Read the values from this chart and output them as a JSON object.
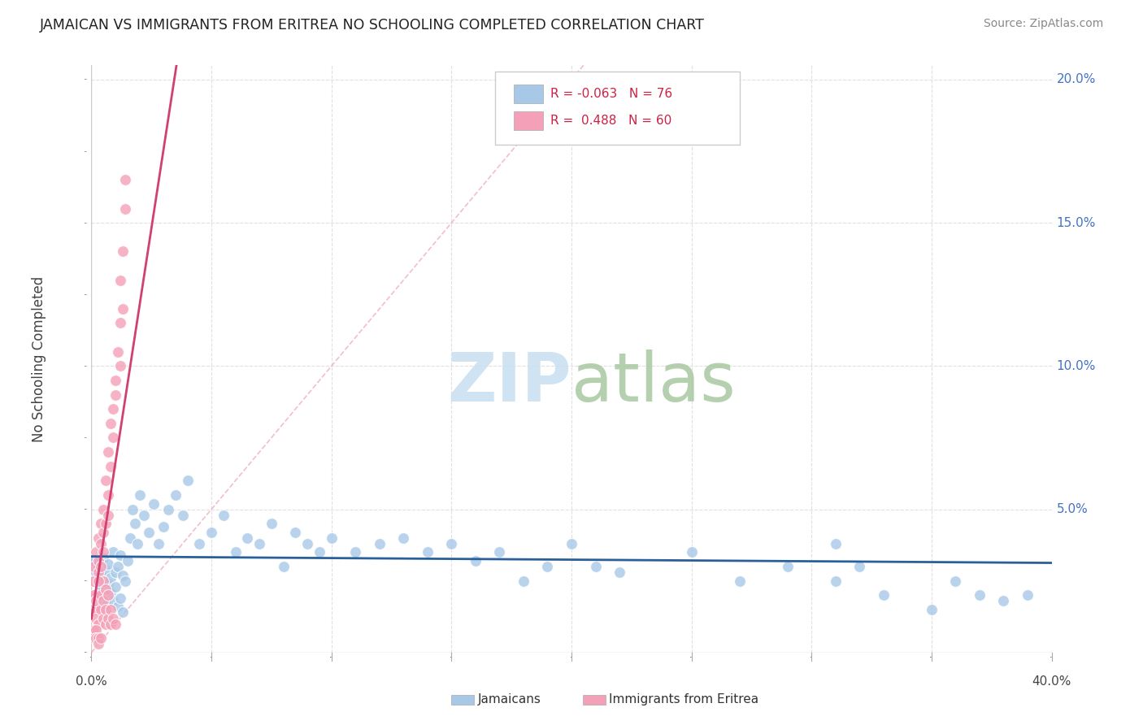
{
  "title": "JAMAICAN VS IMMIGRANTS FROM ERITREA NO SCHOOLING COMPLETED CORRELATION CHART",
  "source": "Source: ZipAtlas.com",
  "ylabel": "No Schooling Completed",
  "xlim": [
    0.0,
    0.42
  ],
  "ylim": [
    -0.005,
    0.21
  ],
  "plot_xlim": [
    0.0,
    0.4
  ],
  "plot_ylim": [
    0.0,
    0.205
  ],
  "xtick_positions": [
    0.0,
    0.05,
    0.1,
    0.15,
    0.2,
    0.25,
    0.3,
    0.35,
    0.4
  ],
  "ytick_right_positions": [
    0.05,
    0.1,
    0.15,
    0.2
  ],
  "ytick_right_labels": [
    "5.0%",
    "10.0%",
    "15.0%",
    "20.0%"
  ],
  "blue_color": "#a8c8e8",
  "pink_color": "#f4a0b8",
  "blue_line_color": "#2a6099",
  "pink_line_color": "#d04070",
  "diag_line_color": "#f0a0b8",
  "grid_color": "#e0e0e0",
  "border_color": "#cccccc",
  "legend_R1": "R = -0.063",
  "legend_N1": "N = 76",
  "legend_R2": "R =  0.488",
  "legend_N2": "N = 60",
  "legend_color": "#cc2244",
  "watermark_zip_color": "#c8dff0",
  "watermark_atlas_color": "#a8c8a0",
  "title_color": "#222222",
  "source_color": "#888888",
  "axis_label_color": "#444444",
  "tick_label_color": "#444444",
  "right_tick_color": "#4472C4",
  "blue_x": [
    0.001,
    0.002,
    0.003,
    0.003,
    0.004,
    0.004,
    0.005,
    0.005,
    0.006,
    0.006,
    0.007,
    0.007,
    0.008,
    0.008,
    0.009,
    0.009,
    0.01,
    0.01,
    0.011,
    0.011,
    0.012,
    0.012,
    0.013,
    0.013,
    0.014,
    0.015,
    0.016,
    0.017,
    0.018,
    0.019,
    0.02,
    0.022,
    0.024,
    0.026,
    0.028,
    0.03,
    0.032,
    0.035,
    0.038,
    0.04,
    0.045,
    0.05,
    0.055,
    0.06,
    0.065,
    0.07,
    0.075,
    0.08,
    0.085,
    0.09,
    0.095,
    0.1,
    0.11,
    0.12,
    0.13,
    0.14,
    0.15,
    0.16,
    0.17,
    0.18,
    0.19,
    0.2,
    0.21,
    0.22,
    0.25,
    0.27,
    0.29,
    0.31,
    0.33,
    0.35,
    0.36,
    0.37,
    0.38,
    0.39,
    0.31,
    0.32
  ],
  "blue_y": [
    0.032,
    0.028,
    0.03,
    0.025,
    0.027,
    0.022,
    0.033,
    0.02,
    0.029,
    0.017,
    0.031,
    0.024,
    0.026,
    0.021,
    0.035,
    0.018,
    0.028,
    0.023,
    0.03,
    0.016,
    0.034,
    0.019,
    0.027,
    0.014,
    0.025,
    0.032,
    0.04,
    0.05,
    0.045,
    0.038,
    0.055,
    0.048,
    0.042,
    0.052,
    0.038,
    0.044,
    0.05,
    0.055,
    0.048,
    0.06,
    0.038,
    0.042,
    0.048,
    0.035,
    0.04,
    0.038,
    0.045,
    0.03,
    0.042,
    0.038,
    0.035,
    0.04,
    0.035,
    0.038,
    0.04,
    0.035,
    0.038,
    0.032,
    0.035,
    0.025,
    0.03,
    0.038,
    0.03,
    0.028,
    0.035,
    0.025,
    0.03,
    0.025,
    0.02,
    0.015,
    0.025,
    0.02,
    0.018,
    0.02,
    0.038,
    0.03
  ],
  "pink_x": [
    0.001,
    0.001,
    0.002,
    0.002,
    0.003,
    0.003,
    0.003,
    0.004,
    0.004,
    0.004,
    0.005,
    0.005,
    0.005,
    0.005,
    0.006,
    0.006,
    0.007,
    0.007,
    0.007,
    0.008,
    0.008,
    0.009,
    0.009,
    0.01,
    0.01,
    0.011,
    0.012,
    0.012,
    0.013,
    0.014,
    0.001,
    0.001,
    0.002,
    0.002,
    0.002,
    0.003,
    0.003,
    0.004,
    0.004,
    0.005,
    0.005,
    0.006,
    0.006,
    0.006,
    0.007,
    0.007,
    0.008,
    0.008,
    0.009,
    0.01,
    0.001,
    0.001,
    0.002,
    0.002,
    0.003,
    0.003,
    0.004,
    0.012,
    0.013,
    0.014
  ],
  "pink_y": [
    0.03,
    0.025,
    0.035,
    0.02,
    0.032,
    0.028,
    0.04,
    0.038,
    0.045,
    0.03,
    0.05,
    0.042,
    0.035,
    0.025,
    0.06,
    0.045,
    0.07,
    0.055,
    0.048,
    0.065,
    0.08,
    0.085,
    0.075,
    0.09,
    0.095,
    0.105,
    0.1,
    0.115,
    0.12,
    0.155,
    0.015,
    0.02,
    0.015,
    0.018,
    0.012,
    0.01,
    0.025,
    0.015,
    0.02,
    0.012,
    0.018,
    0.015,
    0.01,
    0.022,
    0.012,
    0.02,
    0.015,
    0.01,
    0.012,
    0.01,
    0.008,
    0.005,
    0.008,
    0.005,
    0.005,
    0.003,
    0.005,
    0.13,
    0.14,
    0.165
  ]
}
